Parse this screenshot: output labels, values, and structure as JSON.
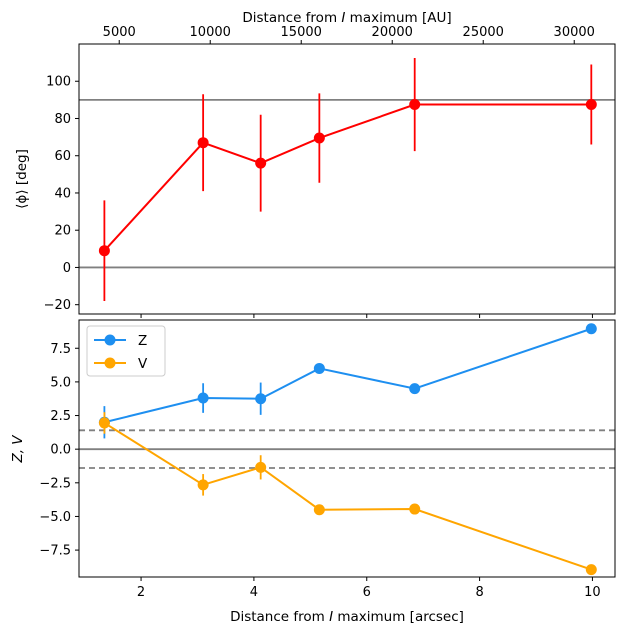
{
  "chart_data": [
    {
      "type": "line",
      "panel": "top",
      "ylabel": "⟨ϕ⟩ [deg]",
      "top_xlabel": "Distance from I maximum [AU]",
      "top_xlabel_parts": [
        "Distance from ",
        "I",
        " maximum [AU]"
      ],
      "top_ticks": [
        5000,
        10000,
        15000,
        20000,
        25000,
        30000
      ],
      "top_tick_labels": [
        "5000",
        "10000",
        "15000",
        "20000",
        "25000",
        "30000"
      ],
      "ylim": [
        -25,
        120
      ],
      "yticks": [
        -20,
        0,
        20,
        40,
        60,
        80,
        100
      ],
      "ytick_labels": [
        "−20",
        "0",
        "20",
        "40",
        "60",
        "80",
        "100"
      ],
      "hlines": [
        0,
        90
      ],
      "series": [
        {
          "color": "#ff0000",
          "x": [
            1.35,
            3.1,
            4.12,
            5.16,
            6.85,
            9.98
          ],
          "y": [
            9,
            67,
            56,
            69.5,
            87.5,
            87.5
          ],
          "yerr": [
            27,
            26,
            26,
            24,
            25,
            21.5
          ]
        }
      ]
    },
    {
      "type": "line",
      "panel": "bottom",
      "xlabel": "Distance from I maximum [arcsec]",
      "xlabel_parts": [
        "Distance from ",
        "I",
        " maximum [arcsec]"
      ],
      "ylabel": "Z, V",
      "xlim": [
        0.9,
        10.4
      ],
      "xticks": [
        2,
        4,
        6,
        8,
        10
      ],
      "xtick_labels": [
        "2",
        "4",
        "6",
        "8",
        "10"
      ],
      "ylim": [
        -9.5,
        9.6
      ],
      "yticks": [
        -7.5,
        -5.0,
        -2.5,
        0.0,
        2.5,
        5.0,
        7.5
      ],
      "ytick_labels": [
        "−7.5",
        "−5.0",
        "−2.5",
        "0.0",
        "2.5",
        "5.0",
        "7.5"
      ],
      "hlines": [
        0
      ],
      "dashed_hlines": [
        1.4,
        -1.4
      ],
      "legend_position": "top-left",
      "series": [
        {
          "name": "Z",
          "color": "#1e8ff0",
          "x": [
            1.35,
            3.1,
            4.12,
            5.16,
            6.85,
            9.98
          ],
          "y": [
            2.0,
            3.8,
            3.75,
            6.0,
            4.5,
            8.95
          ],
          "yerr": [
            1.2,
            1.1,
            1.2,
            0,
            0,
            0
          ]
        },
        {
          "name": "V",
          "color": "#ffa500",
          "x": [
            1.35,
            3.1,
            4.12,
            5.16,
            6.85,
            9.98
          ],
          "y": [
            1.95,
            -2.65,
            -1.35,
            -4.5,
            -4.45,
            -8.95
          ],
          "yerr": [
            0.8,
            0.8,
            0.9,
            0,
            0,
            0
          ]
        }
      ]
    }
  ]
}
